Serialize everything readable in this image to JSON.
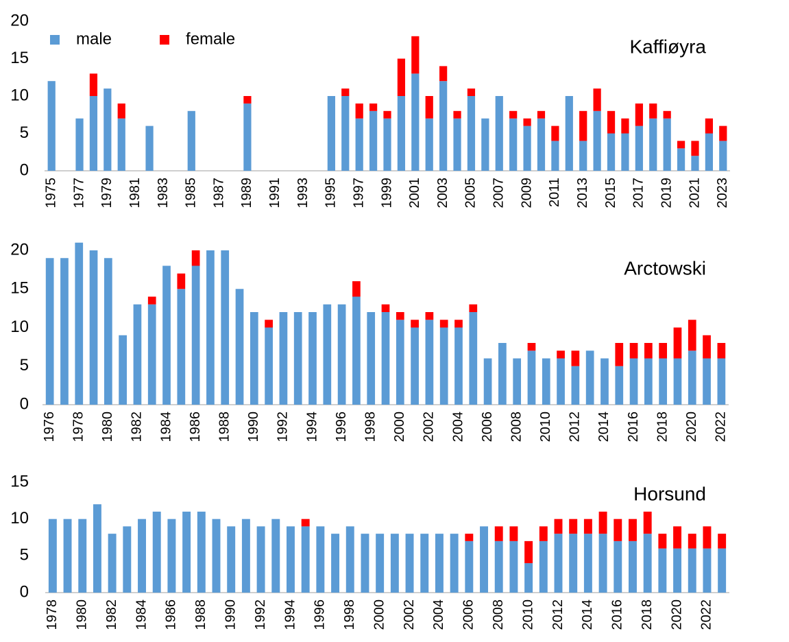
{
  "chart_data": [
    {
      "type": "stacked_bar",
      "title": "Kaffiøyra",
      "legend": "top-left",
      "grid": false,
      "categories": [
        "1975",
        null,
        "1977",
        null,
        "1979",
        null,
        "1981",
        null,
        "1983",
        null,
        "1985",
        null,
        "1987",
        null,
        "1989",
        null,
        "1991",
        null,
        "1993",
        null,
        "1995",
        null,
        "1997",
        null,
        "1999",
        null,
        "2001",
        null,
        "2003",
        null,
        "2005",
        null,
        "2007",
        null,
        "2009",
        null,
        "2011",
        null,
        "2013",
        null,
        "2015",
        null,
        "2017",
        null,
        "2019",
        null,
        "2021",
        null,
        "2023"
      ],
      "series": [
        {
          "name": "male",
          "color": "#5b9bd5",
          "values": [
            12,
            null,
            7,
            10,
            11,
            7,
            null,
            6,
            null,
            null,
            8,
            null,
            null,
            null,
            9,
            null,
            null,
            null,
            null,
            null,
            10,
            10,
            7,
            8,
            7,
            10,
            13,
            7,
            12,
            7,
            10,
            7,
            10,
            7,
            6,
            7,
            4,
            10,
            4,
            8,
            5,
            5,
            6,
            7,
            7,
            3,
            2,
            5,
            4
          ]
        },
        {
          "name": "female",
          "color": "#ff0000",
          "values": [
            0,
            null,
            0,
            3,
            0,
            2,
            null,
            0,
            null,
            null,
            0,
            null,
            null,
            null,
            1,
            null,
            null,
            null,
            null,
            null,
            0,
            1,
            2,
            1,
            1,
            5,
            5,
            3,
            2,
            1,
            1,
            0,
            0,
            1,
            1,
            1,
            2,
            0,
            4,
            3,
            3,
            2,
            3,
            2,
            1,
            1,
            2,
            2,
            2
          ]
        }
      ],
      "ylim": [
        0,
        20
      ],
      "yticks": [
        0,
        5,
        10,
        15,
        20
      ]
    },
    {
      "type": "stacked_bar",
      "title": "Arctowski",
      "grid": false,
      "categories": [
        "1976",
        null,
        "1978",
        null,
        "1980",
        null,
        "1982",
        null,
        "1984",
        null,
        "1986",
        null,
        "1988",
        null,
        "1990",
        null,
        "1992",
        null,
        "1994",
        null,
        "1996",
        null,
        "1998",
        null,
        "2000",
        null,
        "2002",
        null,
        "2004",
        null,
        "2006",
        null,
        "2008",
        null,
        "2010",
        null,
        "2012",
        null,
        "2014",
        null,
        "2016",
        null,
        "2018",
        null,
        "2020",
        null,
        "2022"
      ],
      "series": [
        {
          "color": "#5b9bd5",
          "values": [
            19,
            19,
            21,
            20,
            19,
            9,
            13,
            13,
            18,
            15,
            18,
            20,
            20,
            15,
            12,
            10,
            12,
            12,
            12,
            13,
            13,
            14,
            12,
            12,
            11,
            10,
            11,
            10,
            10,
            12,
            6,
            8,
            6,
            7,
            6,
            6,
            5,
            7,
            6,
            5,
            6,
            6,
            6,
            6,
            7,
            6,
            6
          ]
        },
        {
          "color": "#ff0000",
          "values": [
            0,
            0,
            0,
            0,
            0,
            0,
            0,
            1,
            0,
            2,
            2,
            0,
            0,
            0,
            0,
            1,
            0,
            0,
            0,
            0,
            0,
            2,
            0,
            1,
            1,
            1,
            1,
            1,
            1,
            1,
            0,
            0,
            0,
            1,
            0,
            1,
            2,
            0,
            0,
            3,
            2,
            2,
            2,
            4,
            4,
            3,
            2
          ]
        }
      ],
      "ylim": [
        0,
        22
      ],
      "yticks": [
        0,
        5,
        10,
        15,
        20
      ]
    },
    {
      "type": "stacked_bar",
      "title": "Horsund",
      "grid": false,
      "categories": [
        "1978",
        null,
        "1980",
        null,
        "1982",
        null,
        "1984",
        null,
        "1986",
        null,
        "1988",
        null,
        "1990",
        null,
        "1992",
        null,
        "1994",
        null,
        "1996",
        null,
        "1998",
        null,
        "2000",
        null,
        "2002",
        null,
        "2004",
        null,
        "2006",
        null,
        "2008",
        null,
        "2010",
        null,
        "2012",
        null,
        "2014",
        null,
        "2016",
        null,
        "2018",
        null,
        "2020",
        null,
        "2022",
        null
      ],
      "series": [
        {
          "color": "#5b9bd5",
          "values": [
            10,
            10,
            10,
            12,
            8,
            9,
            10,
            11,
            10,
            11,
            11,
            10,
            9,
            10,
            9,
            10,
            9,
            9,
            9,
            8,
            9,
            8,
            8,
            8,
            8,
            8,
            8,
            8,
            7,
            9,
            7,
            7,
            4,
            7,
            8,
            8,
            8,
            8,
            7,
            7,
            8,
            6,
            6,
            6,
            6,
            6
          ]
        },
        {
          "color": "#ff0000",
          "values": [
            0,
            0,
            0,
            0,
            0,
            0,
            0,
            0,
            0,
            0,
            0,
            0,
            0,
            0,
            0,
            0,
            0,
            1,
            0,
            0,
            0,
            0,
            0,
            0,
            0,
            0,
            0,
            0,
            1,
            0,
            2,
            2,
            3,
            2,
            2,
            2,
            2,
            3,
            3,
            3,
            3,
            2,
            3,
            2,
            3,
            2
          ]
        }
      ],
      "ylim": [
        0,
        15
      ],
      "yticks": [
        0,
        5,
        10,
        15
      ]
    }
  ]
}
